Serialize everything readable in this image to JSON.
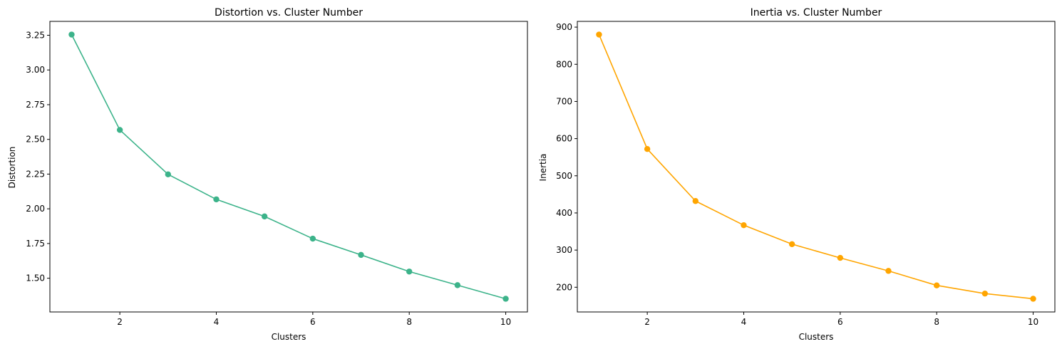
{
  "chart_data": [
    {
      "type": "line",
      "title": "Distortion vs. Cluster Number",
      "xlabel": "Clusters",
      "ylabel": "Distortion",
      "x": [
        1,
        2,
        3,
        4,
        5,
        6,
        7,
        8,
        9,
        10
      ],
      "series": [
        {
          "values": [
            3.255,
            2.568,
            2.248,
            2.068,
            1.945,
            1.785,
            1.668,
            1.548,
            1.45,
            1.352
          ]
        }
      ],
      "xlim": [
        0.55,
        10.45
      ],
      "ylim": [
        1.257,
        3.35
      ],
      "xticks": [
        2,
        4,
        6,
        8,
        10
      ],
      "yticks": [
        1.5,
        1.75,
        2.0,
        2.25,
        2.5,
        2.75,
        3.0,
        3.25
      ],
      "xtick_labels": [
        "2",
        "4",
        "6",
        "8",
        "10"
      ],
      "ytick_labels": [
        "1.50",
        "1.75",
        "2.00",
        "2.25",
        "2.50",
        "2.75",
        "3.00",
        "3.25"
      ],
      "color": "#3cb38a",
      "marker": "circle",
      "grid": false,
      "legend": false
    },
    {
      "type": "line",
      "title": "Inertia vs. Cluster Number",
      "xlabel": "Clusters",
      "ylabel": "Inertia",
      "x": [
        1,
        2,
        3,
        4,
        5,
        6,
        7,
        8,
        9,
        10
      ],
      "series": [
        {
          "values": [
            880,
            572,
            432,
            367,
            316,
            279,
            244,
            205,
            183,
            169
          ]
        }
      ],
      "xlim": [
        0.55,
        10.45
      ],
      "ylim": [
        133.5,
        915.5
      ],
      "xticks": [
        2,
        4,
        6,
        8,
        10
      ],
      "yticks": [
        200,
        300,
        400,
        500,
        600,
        700,
        800,
        900
      ],
      "xtick_labels": [
        "2",
        "4",
        "6",
        "8",
        "10"
      ],
      "ytick_labels": [
        "200",
        "300",
        "400",
        "500",
        "600",
        "700",
        "800",
        "900"
      ],
      "color": "#ffa500",
      "marker": "circle",
      "grid": false,
      "legend": false
    }
  ]
}
